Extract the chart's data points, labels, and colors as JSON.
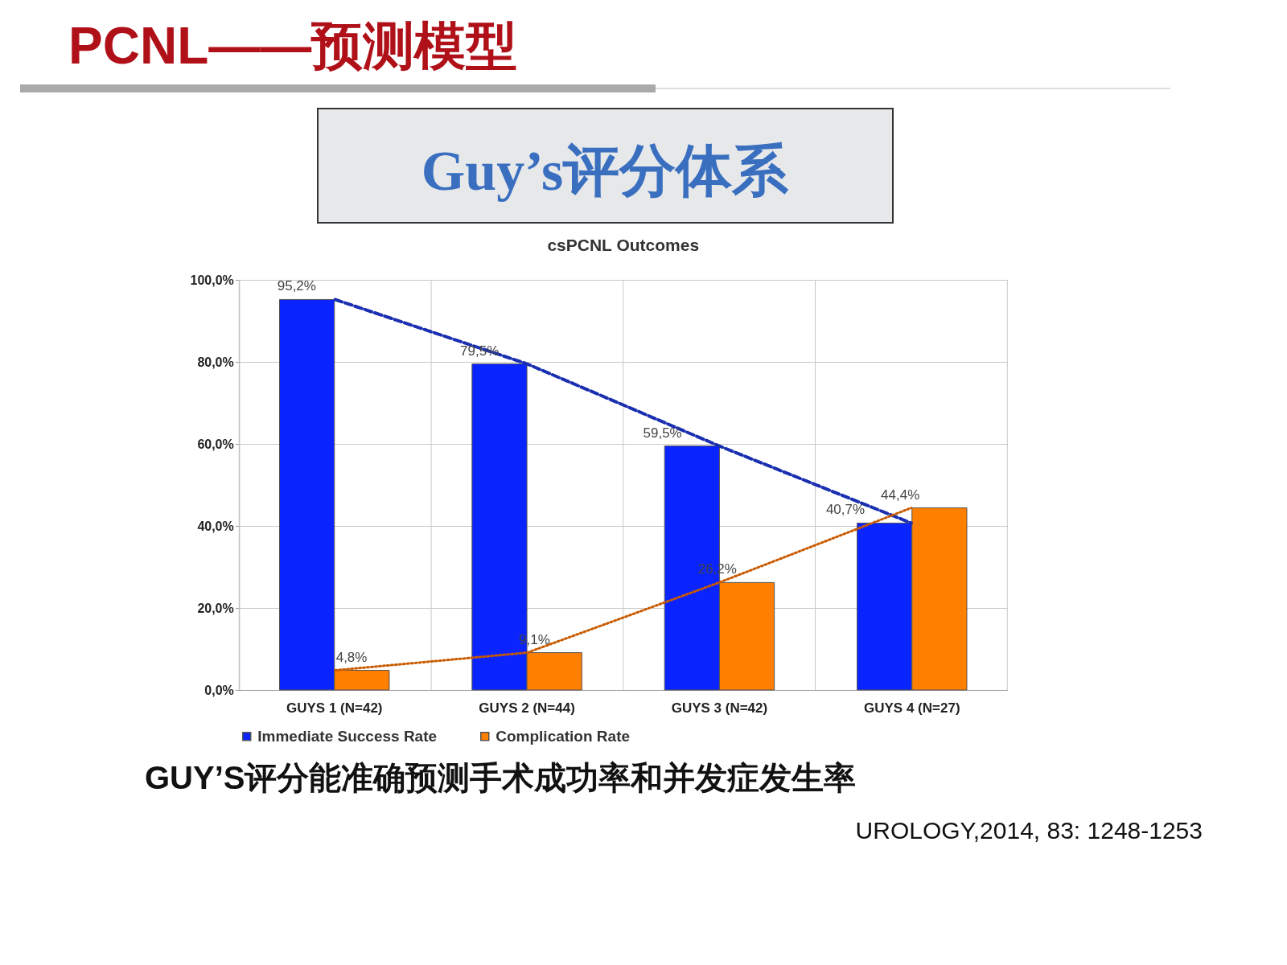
{
  "chart_data": {
    "type": "bar",
    "title": "csPCNL Outcomes",
    "categories": [
      "GUYS 1 (N=42)",
      "GUYS 2 (N=44)",
      "GUYS 3 (N=42)",
      "GUYS 4 (N=27)"
    ],
    "series": [
      {
        "name": "Immediate Success Rate",
        "color": "#0a24ff",
        "values": [
          95.2,
          79.5,
          59.5,
          40.7
        ],
        "value_labels": [
          "95,2%",
          "79,5%",
          "59,5%",
          "40,7%"
        ]
      },
      {
        "name": "Complication Rate",
        "color": "#ff7f00",
        "values": [
          4.8,
          9.1,
          26.2,
          44.4
        ],
        "value_labels": [
          "4,8%",
          "9,1%",
          "26,2%",
          "44,4%"
        ]
      },
      {
        "type": "line",
        "color": "#1a2fb0",
        "line_style": "dashed",
        "values": [
          95.2,
          79.5,
          59.5,
          40.7
        ]
      },
      {
        "type": "line",
        "color": "#c85a00",
        "line_style": "dotted",
        "values": [
          4.8,
          9.1,
          26.2,
          44.4
        ]
      }
    ],
    "ylim": [
      0,
      100
    ],
    "yticks": [
      {
        "value": 0,
        "label": "0,0%"
      },
      {
        "value": 20,
        "label": "20,0%"
      },
      {
        "value": 40,
        "label": "40,0%"
      },
      {
        "value": 60,
        "label": "60,0%"
      },
      {
        "value": 80,
        "label": "80,0%"
      },
      {
        "value": 100,
        "label": "100,0%"
      }
    ],
    "grid": true,
    "legend": "bottom",
    "annotations": [
      "PCNL——预测模型",
      "Guy’s评分体系",
      "GUY’S评分能准确预测手术成功率和并发症发生率",
      "UROLOGY,2014, 83: 1248-1253"
    ]
  }
}
